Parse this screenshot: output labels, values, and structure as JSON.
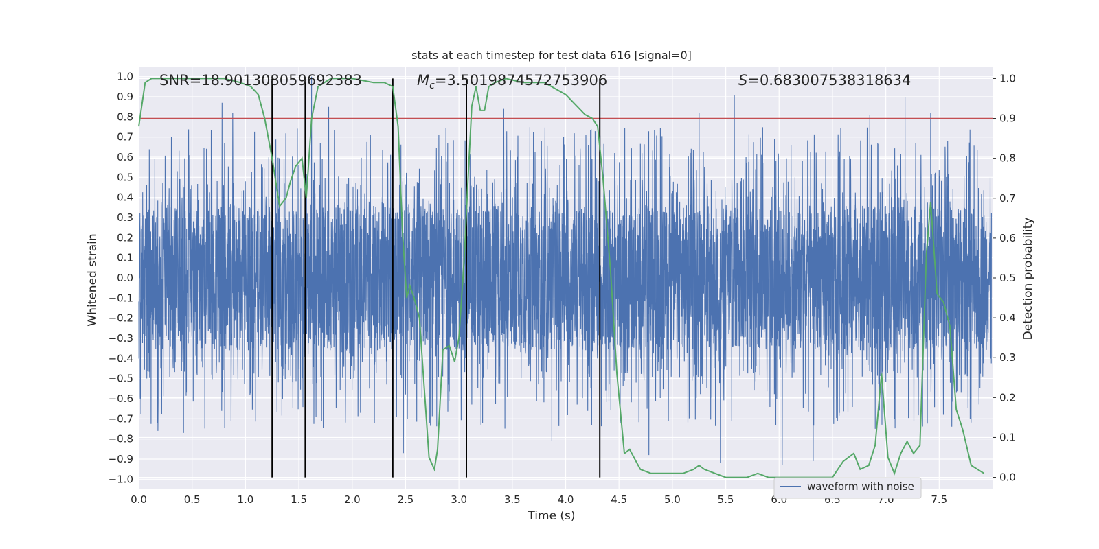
{
  "chart_data": {
    "type": "line",
    "title": "stats at each timestep for test data 616 [signal=0]",
    "xlabel": "Time (s)",
    "ylabel": "Whitened strain",
    "y2label": "Detection probability",
    "xlim": [
      0.0,
      8.0
    ],
    "ylim": [
      -1.05,
      1.05
    ],
    "y2lim": [
      -0.03,
      1.03
    ],
    "xticks": [
      "0.0",
      "0.5",
      "1.0",
      "1.5",
      "2.0",
      "2.5",
      "3.0",
      "3.5",
      "4.0",
      "4.5",
      "5.0",
      "5.5",
      "6.0",
      "6.5",
      "7.0",
      "7.5"
    ],
    "yticks": [
      "1.0",
      "0.9",
      "0.8",
      "0.7",
      "0.6",
      "0.5",
      "0.4",
      "0.3",
      "0.2",
      "0.1",
      "0.0",
      "−0.1",
      "−0.2",
      "−0.3",
      "−0.4",
      "−0.5",
      "−0.6",
      "−0.7",
      "−0.8",
      "−0.9",
      "−1.0"
    ],
    "y2ticks": [
      "1.0",
      "0.9",
      "0.8",
      "0.7",
      "0.6",
      "0.5",
      "0.4",
      "0.3",
      "0.2",
      "0.1",
      "0.0"
    ],
    "grid": true,
    "legend_position": "bottom-right",
    "colors": {
      "waveform": "#4c72b0",
      "probability": "#55a868",
      "threshold": "#c44e52",
      "markers": "#000000",
      "background": "#eaeaf2"
    },
    "annotations": {
      "snr": "SNR=18.901308059692383",
      "mc_symbol": "M",
      "mc_sub": "c",
      "mc_value": "=3.5019874572753906",
      "s_symbol": "S",
      "s_value": "=0.683007538318634"
    },
    "series": [
      {
        "name": "waveform with noise",
        "axis": "left",
        "description_values": "dense whitened noise, sampled over 0–8 s",
        "envelope": {
          "core_amplitude": 0.3,
          "max_peaks": [
            {
              "x": 0.78,
              "y": 0.87
            },
            {
              "x": 0.88,
              "y": 0.82
            },
            {
              "x": 1.62,
              "y": 1.0
            },
            {
              "x": 1.78,
              "y": 0.85
            },
            {
              "x": 3.42,
              "y": 0.84
            },
            {
              "x": 5.58,
              "y": 0.91
            },
            {
              "x": 5.25,
              "y": 0.82
            },
            {
              "x": 7.18,
              "y": 0.9
            },
            {
              "x": 6.85,
              "y": 0.81
            },
            {
              "x": 7.42,
              "y": 0.82
            }
          ],
          "min_peaks": [
            {
              "x": 0.18,
              "y": -0.76
            },
            {
              "x": 0.42,
              "y": -0.77
            },
            {
              "x": 2.48,
              "y": -0.87
            },
            {
              "x": 3.87,
              "y": -0.81
            },
            {
              "x": 4.78,
              "y": -0.88
            },
            {
              "x": 5.45,
              "y": -0.92
            },
            {
              "x": 6.03,
              "y": -0.93
            },
            {
              "x": 6.32,
              "y": -0.91
            }
          ]
        }
      },
      {
        "name": "",
        "axis": "right",
        "x": [
          0.0,
          0.06,
          0.12,
          0.25,
          0.5,
          0.8,
          0.95,
          1.05,
          1.12,
          1.18,
          1.25,
          1.32,
          1.38,
          1.42,
          1.47,
          1.53,
          1.57,
          1.62,
          1.68,
          1.8,
          2.0,
          2.2,
          2.3,
          2.38,
          2.43,
          2.47,
          2.51,
          2.54,
          2.58,
          2.63,
          2.72,
          2.77,
          2.8,
          2.85,
          2.91,
          2.96,
          3.0,
          3.05,
          3.08,
          3.12,
          3.16,
          3.2,
          3.24,
          3.28,
          3.34,
          3.44,
          3.6,
          3.8,
          4.0,
          4.18,
          4.25,
          4.3,
          4.35,
          4.42,
          4.48,
          4.55,
          4.6,
          4.66,
          4.7,
          4.8,
          4.9,
          5.0,
          5.1,
          5.2,
          5.25,
          5.3,
          5.4,
          5.5,
          5.6,
          5.7,
          5.8,
          5.9,
          6.0,
          6.1,
          6.2,
          6.4,
          6.5,
          6.6,
          6.7,
          6.76,
          6.84,
          6.9,
          6.96,
          7.02,
          7.08,
          7.14,
          7.2,
          7.26,
          7.32,
          7.38,
          7.42,
          7.48,
          7.54,
          7.6,
          7.66,
          7.72,
          7.8,
          7.92
        ],
        "y": [
          0.88,
          0.99,
          1.0,
          1.0,
          1.0,
          1.0,
          0.99,
          0.98,
          0.96,
          0.9,
          0.8,
          0.68,
          0.7,
          0.74,
          0.78,
          0.8,
          0.7,
          0.9,
          0.98,
          1.0,
          1.0,
          0.99,
          0.99,
          0.98,
          0.88,
          0.62,
          0.45,
          0.48,
          0.45,
          0.4,
          0.05,
          0.02,
          0.07,
          0.32,
          0.33,
          0.29,
          0.35,
          0.55,
          0.72,
          0.93,
          0.98,
          0.92,
          0.92,
          0.98,
          0.99,
          1.0,
          0.99,
          0.99,
          0.96,
          0.91,
          0.9,
          0.88,
          0.75,
          0.52,
          0.26,
          0.06,
          0.07,
          0.04,
          0.02,
          0.01,
          0.01,
          0.01,
          0.01,
          0.02,
          0.03,
          0.02,
          0.01,
          0.0,
          0.0,
          0.0,
          0.01,
          0.0,
          0.0,
          0.0,
          0.0,
          0.0,
          0.0,
          0.04,
          0.06,
          0.02,
          0.03,
          0.08,
          0.26,
          0.05,
          0.01,
          0.06,
          0.09,
          0.06,
          0.08,
          0.56,
          0.69,
          0.46,
          0.44,
          0.38,
          0.17,
          0.12,
          0.03,
          0.01
        ]
      }
    ],
    "threshold_right": 0.9,
    "vertical_lines": [
      1.25,
      1.56,
      2.38,
      3.07,
      4.32
    ]
  }
}
